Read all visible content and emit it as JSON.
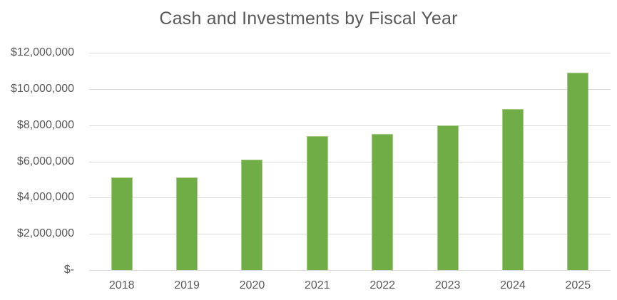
{
  "chart_data": {
    "type": "bar",
    "title": "Cash and Investments by Fiscal Year",
    "categories": [
      "2018",
      "2019",
      "2020",
      "2021",
      "2022",
      "2023",
      "2024",
      "2025"
    ],
    "values": [
      5100000,
      5100000,
      6100000,
      7400000,
      7500000,
      8000000,
      8900000,
      10900000
    ],
    "xlabel": "",
    "ylabel": "",
    "ylim": [
      0,
      12000000
    ],
    "ytick_step": 2000000,
    "ytick_labels_bottom_to_top": [
      "$-",
      "$2,000,000",
      "$4,000,000",
      "$6,000,000",
      "$8,000,000",
      "$10,000,000",
      "$12,000,000"
    ],
    "grid": true,
    "legend": false
  },
  "colors": {
    "bar": "#70AD47",
    "bar_border": "#A3CC82",
    "grid": "#D9D9D9",
    "text": "#595959",
    "background": "#FFFFFF"
  }
}
